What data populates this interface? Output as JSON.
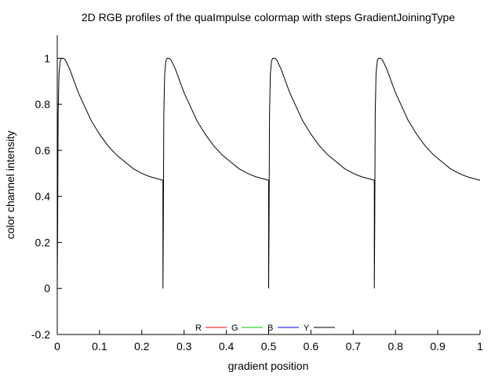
{
  "chart_data": {
    "type": "line",
    "title": "2D RGB profiles of the quaImpulse colormap with steps GradientJoiningType",
    "xlabel": "gradient position",
    "ylabel": "color channel intensity",
    "xlim": [
      0,
      1
    ],
    "ylim": [
      -0.2,
      1.1
    ],
    "x_ticks": [
      0,
      0.1,
      0.2,
      0.3,
      0.4,
      0.5,
      0.6,
      0.7,
      0.8,
      0.9,
      1
    ],
    "x_tick_labels": [
      "0",
      "0.1",
      "0.2",
      "0.3",
      "0.4",
      "0.5",
      "0.6",
      "0.7",
      "0.8",
      "0.9",
      "1"
    ],
    "y_ticks": [
      -0.2,
      0,
      0.2,
      0.4,
      0.6,
      0.8,
      1
    ],
    "y_tick_labels": [
      "-0.2",
      "0",
      "0.2",
      "0.4",
      "0.6",
      "0.8",
      "1"
    ],
    "legend_position": "bottom-center",
    "segments": 4,
    "series": [
      {
        "name": "R",
        "color": "#ff0000",
        "values": []
      },
      {
        "name": "G",
        "color": "#00cc00",
        "values": []
      },
      {
        "name": "B",
        "color": "#0000ff",
        "values": []
      },
      {
        "name": "Y",
        "color": "#000000",
        "x": [
          0,
          0.001,
          0.002,
          0.004,
          0.007,
          0.01,
          0.015,
          0.02,
          0.03,
          0.04,
          0.05,
          0.06,
          0.07,
          0.08,
          0.09,
          0.1,
          0.12,
          0.14,
          0.16,
          0.18,
          0.2,
          0.22,
          0.24,
          0.2499
        ],
        "values": [
          0,
          0.3,
          0.75,
          0.93,
          0.99,
          1.0,
          1.0,
          0.99,
          0.95,
          0.9,
          0.85,
          0.81,
          0.77,
          0.73,
          0.7,
          0.67,
          0.62,
          0.58,
          0.55,
          0.52,
          0.5,
          0.485,
          0.475,
          0.47
        ]
      }
    ]
  }
}
